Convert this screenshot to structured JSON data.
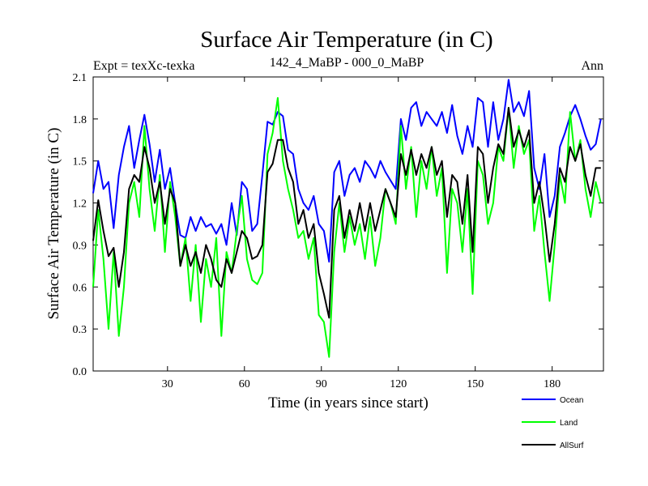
{
  "chart_data": {
    "type": "line",
    "title": "Surface Air Temperature (in C)",
    "left_subtitle": "Expt = texXc-texka",
    "center_subtitle": "142_4_MaBP - 000_0_MaBP",
    "right_subtitle": "Ann",
    "xlabel": "Time (in years since start)",
    "ylabel": "Surface Air Temperature (in C)",
    "xlim": [
      1,
      200
    ],
    "ylim": [
      0.0,
      2.1
    ],
    "xticks": [
      30,
      60,
      90,
      120,
      150,
      180
    ],
    "yticks": [
      0.0,
      0.3,
      0.6,
      0.9,
      1.2,
      1.5,
      1.8,
      2.1
    ],
    "ytick_labels": [
      "0.0",
      "0.3",
      "0.6",
      "0.9",
      "1.2",
      "1.5",
      "1.8",
      "2.1"
    ],
    "legend_position": "bottom-right outside",
    "series": [
      {
        "name": "Ocean",
        "color": "#0000ff",
        "points": [
          [
            1,
            1.27
          ],
          [
            3,
            1.5
          ],
          [
            5,
            1.3
          ],
          [
            7,
            1.35
          ],
          [
            9,
            1.02
          ],
          [
            11,
            1.4
          ],
          [
            13,
            1.6
          ],
          [
            15,
            1.75
          ],
          [
            17,
            1.45
          ],
          [
            19,
            1.65
          ],
          [
            21,
            1.83
          ],
          [
            23,
            1.62
          ],
          [
            25,
            1.35
          ],
          [
            27,
            1.58
          ],
          [
            29,
            1.3
          ],
          [
            31,
            1.45
          ],
          [
            33,
            1.2
          ],
          [
            35,
            0.97
          ],
          [
            37,
            0.95
          ],
          [
            39,
            1.1
          ],
          [
            41,
            1.0
          ],
          [
            43,
            1.1
          ],
          [
            45,
            1.03
          ],
          [
            47,
            1.05
          ],
          [
            49,
            0.98
          ],
          [
            51,
            1.05
          ],
          [
            53,
            0.9
          ],
          [
            55,
            1.2
          ],
          [
            57,
            0.97
          ],
          [
            59,
            1.35
          ],
          [
            61,
            1.3
          ],
          [
            63,
            1.0
          ],
          [
            65,
            1.05
          ],
          [
            67,
            1.4
          ],
          [
            69,
            1.78
          ],
          [
            71,
            1.76
          ],
          [
            73,
            1.85
          ],
          [
            75,
            1.82
          ],
          [
            77,
            1.58
          ],
          [
            79,
            1.55
          ],
          [
            81,
            1.3
          ],
          [
            83,
            1.2
          ],
          [
            85,
            1.15
          ],
          [
            87,
            1.25
          ],
          [
            89,
            1.05
          ],
          [
            91,
            1.0
          ],
          [
            93,
            0.78
          ],
          [
            95,
            1.42
          ],
          [
            97,
            1.5
          ],
          [
            99,
            1.25
          ],
          [
            101,
            1.4
          ],
          [
            103,
            1.45
          ],
          [
            105,
            1.35
          ],
          [
            107,
            1.5
          ],
          [
            109,
            1.45
          ],
          [
            111,
            1.38
          ],
          [
            113,
            1.5
          ],
          [
            115,
            1.42
          ],
          [
            117,
            1.36
          ],
          [
            119,
            1.3
          ],
          [
            121,
            1.8
          ],
          [
            123,
            1.65
          ],
          [
            125,
            1.88
          ],
          [
            127,
            1.92
          ],
          [
            129,
            1.75
          ],
          [
            131,
            1.85
          ],
          [
            133,
            1.8
          ],
          [
            135,
            1.75
          ],
          [
            137,
            1.85
          ],
          [
            139,
            1.7
          ],
          [
            141,
            1.9
          ],
          [
            143,
            1.68
          ],
          [
            145,
            1.55
          ],
          [
            147,
            1.75
          ],
          [
            149,
            1.6
          ],
          [
            151,
            1.95
          ],
          [
            153,
            1.92
          ],
          [
            155,
            1.6
          ],
          [
            157,
            1.92
          ],
          [
            159,
            1.65
          ],
          [
            161,
            1.8
          ],
          [
            163,
            2.08
          ],
          [
            165,
            1.85
          ],
          [
            167,
            1.92
          ],
          [
            169,
            1.82
          ],
          [
            171,
            2.0
          ],
          [
            173,
            1.45
          ],
          [
            175,
            1.3
          ],
          [
            177,
            1.55
          ],
          [
            179,
            1.1
          ],
          [
            181,
            1.25
          ],
          [
            183,
            1.6
          ],
          [
            185,
            1.7
          ],
          [
            187,
            1.82
          ],
          [
            189,
            1.9
          ],
          [
            191,
            1.8
          ],
          [
            193,
            1.68
          ],
          [
            195,
            1.58
          ],
          [
            197,
            1.62
          ],
          [
            199,
            1.8
          ]
        ]
      },
      {
        "name": "Land",
        "color": "#00ff00",
        "points": [
          [
            1,
            0.6
          ],
          [
            3,
            1.15
          ],
          [
            5,
            0.8
          ],
          [
            7,
            0.3
          ],
          [
            9,
            0.85
          ],
          [
            11,
            0.25
          ],
          [
            13,
            0.6
          ],
          [
            15,
            1.2
          ],
          [
            17,
            1.35
          ],
          [
            19,
            1.1
          ],
          [
            21,
            1.75
          ],
          [
            23,
            1.3
          ],
          [
            25,
            1.0
          ],
          [
            27,
            1.4
          ],
          [
            29,
            0.85
          ],
          [
            31,
            1.35
          ],
          [
            33,
            1.1
          ],
          [
            35,
            0.75
          ],
          [
            37,
            0.95
          ],
          [
            39,
            0.5
          ],
          [
            41,
            0.9
          ],
          [
            43,
            0.35
          ],
          [
            45,
            0.8
          ],
          [
            47,
            0.6
          ],
          [
            49,
            0.95
          ],
          [
            51,
            0.25
          ],
          [
            53,
            0.85
          ],
          [
            55,
            0.7
          ],
          [
            57,
            1.0
          ],
          [
            59,
            1.25
          ],
          [
            61,
            0.8
          ],
          [
            63,
            0.65
          ],
          [
            65,
            0.62
          ],
          [
            67,
            0.7
          ],
          [
            69,
            1.55
          ],
          [
            71,
            1.7
          ],
          [
            73,
            1.95
          ],
          [
            75,
            1.5
          ],
          [
            77,
            1.3
          ],
          [
            79,
            1.15
          ],
          [
            81,
            0.95
          ],
          [
            83,
            1.0
          ],
          [
            85,
            0.8
          ],
          [
            87,
            0.95
          ],
          [
            89,
            0.4
          ],
          [
            91,
            0.35
          ],
          [
            93,
            0.1
          ],
          [
            95,
            0.85
          ],
          [
            97,
            1.2
          ],
          [
            99,
            0.85
          ],
          [
            101,
            1.1
          ],
          [
            103,
            0.9
          ],
          [
            105,
            1.05
          ],
          [
            107,
            0.8
          ],
          [
            109,
            1.1
          ],
          [
            111,
            0.75
          ],
          [
            113,
            0.95
          ],
          [
            115,
            1.3
          ],
          [
            117,
            1.2
          ],
          [
            119,
            1.05
          ],
          [
            121,
            1.75
          ],
          [
            123,
            1.3
          ],
          [
            125,
            1.6
          ],
          [
            127,
            1.1
          ],
          [
            129,
            1.5
          ],
          [
            131,
            1.3
          ],
          [
            133,
            1.6
          ],
          [
            135,
            1.25
          ],
          [
            137,
            1.45
          ],
          [
            139,
            0.7
          ],
          [
            141,
            1.3
          ],
          [
            143,
            1.2
          ],
          [
            145,
            0.85
          ],
          [
            147,
            1.3
          ],
          [
            149,
            0.55
          ],
          [
            151,
            1.5
          ],
          [
            153,
            1.4
          ],
          [
            155,
            1.05
          ],
          [
            157,
            1.2
          ],
          [
            159,
            1.6
          ],
          [
            161,
            1.5
          ],
          [
            163,
            1.88
          ],
          [
            165,
            1.45
          ],
          [
            167,
            1.75
          ],
          [
            169,
            1.55
          ],
          [
            171,
            1.65
          ],
          [
            173,
            1.0
          ],
          [
            175,
            1.25
          ],
          [
            177,
            0.85
          ],
          [
            179,
            0.5
          ],
          [
            181,
            0.9
          ],
          [
            183,
            1.4
          ],
          [
            185,
            1.2
          ],
          [
            187,
            1.85
          ],
          [
            189,
            1.5
          ],
          [
            191,
            1.65
          ],
          [
            193,
            1.3
          ],
          [
            195,
            1.1
          ],
          [
            197,
            1.35
          ],
          [
            199,
            1.2
          ]
        ]
      },
      {
        "name": "AllSurf",
        "color": "#000000",
        "points": [
          [
            1,
            0.93
          ],
          [
            3,
            1.22
          ],
          [
            5,
            1.0
          ],
          [
            7,
            0.82
          ],
          [
            9,
            0.88
          ],
          [
            11,
            0.6
          ],
          [
            13,
            0.85
          ],
          [
            15,
            1.3
          ],
          [
            17,
            1.4
          ],
          [
            19,
            1.35
          ],
          [
            21,
            1.6
          ],
          [
            23,
            1.45
          ],
          [
            25,
            1.2
          ],
          [
            27,
            1.35
          ],
          [
            29,
            1.05
          ],
          [
            31,
            1.3
          ],
          [
            33,
            1.2
          ],
          [
            35,
            0.75
          ],
          [
            37,
            0.9
          ],
          [
            39,
            0.75
          ],
          [
            41,
            0.85
          ],
          [
            43,
            0.7
          ],
          [
            45,
            0.9
          ],
          [
            47,
            0.8
          ],
          [
            49,
            0.65
          ],
          [
            51,
            0.6
          ],
          [
            53,
            0.8
          ],
          [
            55,
            0.7
          ],
          [
            57,
            0.85
          ],
          [
            59,
            1.0
          ],
          [
            61,
            0.95
          ],
          [
            63,
            0.8
          ],
          [
            65,
            0.82
          ],
          [
            67,
            0.9
          ],
          [
            69,
            1.42
          ],
          [
            71,
            1.48
          ],
          [
            73,
            1.65
          ],
          [
            75,
            1.65
          ],
          [
            77,
            1.45
          ],
          [
            79,
            1.35
          ],
          [
            81,
            1.05
          ],
          [
            83,
            1.15
          ],
          [
            85,
            0.95
          ],
          [
            87,
            1.05
          ],
          [
            89,
            0.7
          ],
          [
            91,
            0.55
          ],
          [
            93,
            0.38
          ],
          [
            95,
            1.15
          ],
          [
            97,
            1.25
          ],
          [
            99,
            0.95
          ],
          [
            101,
            1.15
          ],
          [
            103,
            1.0
          ],
          [
            105,
            1.2
          ],
          [
            107,
            1.0
          ],
          [
            109,
            1.2
          ],
          [
            111,
            1.0
          ],
          [
            113,
            1.15
          ],
          [
            115,
            1.3
          ],
          [
            117,
            1.2
          ],
          [
            119,
            1.1
          ],
          [
            121,
            1.55
          ],
          [
            123,
            1.4
          ],
          [
            125,
            1.58
          ],
          [
            127,
            1.4
          ],
          [
            129,
            1.55
          ],
          [
            131,
            1.45
          ],
          [
            133,
            1.6
          ],
          [
            135,
            1.4
          ],
          [
            137,
            1.5
          ],
          [
            139,
            1.1
          ],
          [
            141,
            1.4
          ],
          [
            143,
            1.35
          ],
          [
            145,
            1.05
          ],
          [
            147,
            1.4
          ],
          [
            149,
            0.85
          ],
          [
            151,
            1.6
          ],
          [
            153,
            1.55
          ],
          [
            155,
            1.2
          ],
          [
            157,
            1.45
          ],
          [
            159,
            1.62
          ],
          [
            161,
            1.55
          ],
          [
            163,
            1.88
          ],
          [
            165,
            1.6
          ],
          [
            167,
            1.72
          ],
          [
            169,
            1.6
          ],
          [
            171,
            1.72
          ],
          [
            173,
            1.2
          ],
          [
            175,
            1.35
          ],
          [
            177,
            1.1
          ],
          [
            179,
            0.78
          ],
          [
            181,
            1.05
          ],
          [
            183,
            1.45
          ],
          [
            185,
            1.35
          ],
          [
            187,
            1.6
          ],
          [
            189,
            1.5
          ],
          [
            191,
            1.62
          ],
          [
            193,
            1.4
          ],
          [
            195,
            1.25
          ],
          [
            197,
            1.45
          ],
          [
            199,
            1.45
          ]
        ]
      }
    ]
  }
}
